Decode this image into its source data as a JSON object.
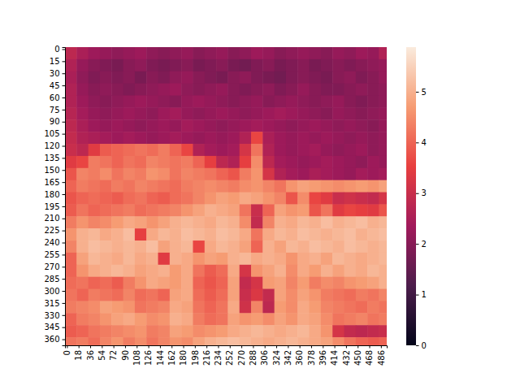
{
  "chart_data": {
    "type": "heatmap",
    "xlim": [
      -3,
      495
    ],
    "ylim": [
      -2.5,
      367.5
    ],
    "xticks": [
      0,
      18,
      36,
      54,
      72,
      90,
      108,
      126,
      144,
      162,
      180,
      198,
      216,
      234,
      252,
      270,
      288,
      306,
      324,
      342,
      360,
      378,
      396,
      414,
      432,
      450,
      468,
      486
    ],
    "yticks": [
      0,
      15,
      30,
      45,
      60,
      75,
      90,
      105,
      120,
      135,
      150,
      165,
      180,
      195,
      210,
      225,
      240,
      255,
      270,
      285,
      300,
      315,
      330,
      345,
      360
    ],
    "x_edges": [
      -3,
      15,
      33,
      51,
      69,
      87,
      105,
      123,
      141,
      159,
      177,
      195,
      213,
      231,
      249,
      267,
      285,
      303,
      321,
      339,
      357,
      375,
      393,
      411,
      429,
      447,
      465,
      483,
      501
    ],
    "y_edges": [
      -2.5,
      12.5,
      27.5,
      42.5,
      57.5,
      72.5,
      87.5,
      102.5,
      117.5,
      132.5,
      147.5,
      162.5,
      177.5,
      192.5,
      207.5,
      222.5,
      237.5,
      252.5,
      267.5,
      282.5,
      297.5,
      312.5,
      327.5,
      342.5,
      357.5,
      372.5
    ],
    "cells": [
      [
        2.8,
        2.5,
        2.3,
        2.2,
        2.1,
        2.2,
        2.3,
        2.1,
        2.0,
        2.1,
        2.2,
        2.0,
        2.1,
        2.2,
        2.0,
        2.1,
        2.3,
        2.2,
        2.0,
        2.1,
        2.2,
        2.1,
        2.0,
        2.2,
        2.1,
        2.3,
        2.2,
        2.6
      ],
      [
        2.6,
        2.2,
        2.0,
        1.9,
        1.8,
        2.0,
        2.1,
        1.9,
        1.8,
        1.9,
        2.0,
        1.8,
        1.9,
        2.0,
        1.8,
        1.7,
        1.9,
        2.0,
        1.8,
        1.9,
        2.0,
        1.8,
        1.9,
        2.0,
        1.9,
        2.0,
        2.1,
        2.2
      ],
      [
        2.5,
        2.1,
        1.9,
        2.0,
        1.9,
        2.0,
        1.8,
        2.0,
        1.9,
        2.1,
        2.2,
        2.0,
        1.9,
        1.8,
        2.0,
        2.1,
        1.9,
        1.8,
        1.7,
        1.9,
        2.0,
        1.9,
        1.8,
        2.0,
        2.1,
        1.9,
        2.0,
        2.2
      ],
      [
        2.6,
        2.2,
        2.0,
        2.1,
        2.0,
        1.9,
        2.0,
        2.1,
        2.2,
        2.3,
        2.1,
        2.0,
        2.1,
        2.2,
        2.0,
        1.9,
        2.0,
        2.1,
        1.9,
        2.0,
        2.2,
        2.0,
        1.9,
        1.9,
        2.0,
        2.1,
        2.0,
        2.1
      ],
      [
        2.6,
        2.3,
        2.1,
        2.0,
        2.1,
        2.2,
        2.3,
        2.2,
        2.1,
        2.0,
        2.2,
        2.3,
        2.2,
        2.1,
        2.0,
        2.1,
        2.2,
        2.0,
        2.1,
        2.2,
        2.1,
        2.0,
        2.1,
        2.2,
        2.0,
        1.9,
        2.0,
        2.1
      ],
      [
        2.7,
        2.4,
        2.2,
        2.1,
        2.2,
        2.3,
        2.2,
        2.1,
        2.3,
        2.4,
        2.2,
        2.1,
        2.2,
        2.3,
        2.2,
        2.1,
        2.2,
        2.3,
        2.4,
        2.3,
        2.2,
        2.1,
        2.0,
        2.2,
        2.1,
        2.0,
        2.1,
        2.2
      ],
      [
        2.8,
        2.5,
        2.3,
        2.2,
        2.3,
        2.2,
        2.1,
        2.2,
        2.3,
        2.2,
        2.4,
        2.3,
        2.2,
        2.1,
        2.2,
        2.3,
        2.4,
        2.3,
        2.2,
        2.1,
        2.2,
        2.3,
        2.2,
        2.1,
        2.2,
        2.1,
        2.0,
        2.2
      ],
      [
        2.9,
        2.6,
        2.5,
        2.4,
        2.3,
        2.4,
        2.3,
        2.2,
        2.3,
        2.4,
        2.3,
        2.2,
        2.3,
        2.2,
        2.3,
        2.6,
        3.6,
        2.5,
        2.3,
        2.2,
        2.3,
        2.2,
        2.3,
        2.2,
        2.1,
        2.2,
        2.1,
        2.2
      ],
      [
        3.0,
        2.8,
        3.4,
        3.9,
        4.0,
        4.1,
        4.2,
        4.1,
        4.3,
        4.0,
        3.6,
        2.6,
        2.4,
        2.3,
        2.4,
        3.2,
        4.2,
        2.6,
        2.3,
        2.2,
        2.3,
        2.4,
        2.2,
        2.1,
        2.2,
        2.3,
        2.1,
        2.2
      ],
      [
        3.4,
        3.6,
        4.3,
        4.2,
        4.0,
        4.2,
        4.1,
        4.4,
        4.3,
        4.2,
        4.3,
        4.0,
        3.5,
        2.8,
        2.6,
        3.5,
        4.5,
        2.8,
        2.4,
        2.3,
        2.2,
        2.3,
        2.4,
        2.3,
        2.2,
        2.1,
        2.3,
        2.2
      ],
      [
        3.8,
        4.4,
        4.3,
        4.5,
        4.2,
        4.4,
        4.3,
        4.6,
        4.5,
        4.2,
        4.4,
        4.3,
        4.2,
        4.0,
        3.8,
        4.3,
        4.6,
        3.2,
        2.6,
        2.4,
        2.3,
        2.5,
        2.4,
        2.3,
        2.2,
        2.4,
        2.3,
        2.4
      ],
      [
        4.0,
        4.3,
        4.2,
        4.1,
        4.3,
        4.2,
        4.4,
        4.3,
        4.2,
        4.1,
        4.3,
        4.4,
        4.5,
        4.4,
        4.3,
        4.5,
        4.6,
        4.4,
        4.2,
        4.6,
        4.8,
        4.7,
        4.6,
        4.5,
        4.6,
        4.7,
        4.6,
        4.8
      ],
      [
        3.8,
        4.0,
        4.1,
        4.0,
        3.9,
        4.1,
        4.2,
        4.0,
        3.9,
        4.1,
        4.2,
        4.4,
        4.6,
        4.8,
        4.7,
        4.9,
        4.8,
        4.6,
        4.4,
        3.8,
        4.5,
        3.6,
        3.4,
        3.0,
        3.1,
        3.0,
        2.9,
        3.2
      ],
      [
        3.9,
        4.2,
        4.0,
        4.1,
        4.2,
        4.3,
        4.1,
        4.2,
        4.3,
        4.4,
        4.6,
        4.8,
        5.0,
        4.9,
        4.8,
        4.2,
        3.0,
        4.0,
        4.8,
        4.6,
        4.7,
        3.8,
        4.2,
        3.4,
        3.6,
        3.5,
        3.4,
        3.8
      ],
      [
        4.3,
        4.6,
        4.4,
        4.5,
        4.7,
        4.9,
        4.8,
        4.6,
        4.8,
        5.0,
        5.1,
        5.0,
        4.9,
        5.1,
        5.0,
        4.5,
        2.9,
        4.4,
        5.0,
        4.9,
        5.1,
        5.0,
        5.2,
        5.0,
        5.1,
        5.2,
        5.0,
        5.1
      ],
      [
        4.6,
        5.0,
        5.1,
        4.9,
        5.0,
        5.2,
        3.5,
        4.9,
        5.1,
        5.0,
        5.2,
        5.1,
        5.0,
        5.2,
        5.1,
        4.9,
        4.2,
        4.9,
        5.1,
        5.0,
        5.2,
        5.1,
        5.0,
        5.1,
        5.2,
        5.0,
        5.1,
        5.2
      ],
      [
        4.4,
        5.0,
        5.2,
        5.1,
        5.0,
        5.1,
        5.0,
        5.2,
        4.8,
        5.0,
        5.1,
        3.6,
        4.9,
        5.1,
        5.0,
        4.8,
        4.0,
        5.0,
        4.8,
        5.1,
        5.0,
        5.2,
        5.1,
        5.0,
        5.2,
        5.1,
        5.0,
        5.1
      ],
      [
        4.0,
        4.8,
        5.1,
        5.0,
        4.9,
        5.1,
        4.9,
        5.0,
        3.4,
        5.0,
        4.9,
        4.6,
        4.8,
        4.7,
        5.0,
        5.1,
        4.9,
        5.0,
        4.9,
        4.6,
        4.9,
        5.0,
        4.8,
        5.1,
        5.0,
        4.9,
        5.0,
        5.1
      ],
      [
        4.0,
        4.6,
        4.9,
        5.0,
        5.1,
        5.0,
        4.8,
        4.9,
        5.0,
        4.7,
        4.9,
        4.2,
        3.9,
        4.1,
        4.9,
        3.2,
        4.6,
        4.8,
        5.0,
        4.5,
        4.9,
        4.7,
        5.0,
        4.8,
        5.0,
        4.9,
        5.1,
        5.0
      ],
      [
        4.1,
        4.2,
        4.0,
        4.1,
        3.9,
        4.3,
        4.6,
        4.9,
        4.8,
        4.7,
        4.9,
        4.0,
        3.8,
        4.0,
        4.8,
        2.9,
        3.2,
        4.7,
        4.8,
        4.4,
        4.7,
        4.3,
        4.5,
        4.4,
        4.6,
        4.7,
        4.8,
        5.0
      ],
      [
        4.2,
        4.0,
        4.3,
        4.2,
        4.1,
        4.4,
        4.1,
        4.2,
        4.0,
        4.8,
        4.9,
        4.1,
        3.9,
        4.1,
        4.8,
        3.0,
        3.3,
        2.9,
        4.8,
        4.5,
        4.8,
        4.6,
        4.3,
        4.2,
        4.1,
        4.3,
        4.2,
        4.4
      ],
      [
        4.3,
        4.4,
        4.5,
        4.8,
        4.7,
        4.6,
        4.2,
        4.3,
        4.4,
        4.9,
        4.8,
        4.2,
        4.0,
        4.2,
        4.9,
        3.1,
        4.4,
        2.8,
        4.7,
        4.5,
        4.9,
        4.7,
        4.4,
        4.3,
        4.2,
        4.1,
        4.3,
        4.2
      ],
      [
        4.0,
        4.3,
        4.4,
        4.6,
        4.8,
        4.9,
        4.7,
        4.5,
        4.6,
        5.0,
        4.9,
        4.3,
        4.1,
        4.2,
        4.8,
        4.6,
        4.7,
        4.5,
        4.8,
        4.6,
        4.9,
        4.8,
        4.5,
        4.2,
        4.3,
        4.4,
        4.2,
        4.3
      ],
      [
        3.9,
        4.0,
        4.2,
        4.3,
        4.4,
        4.5,
        4.6,
        4.3,
        4.4,
        4.8,
        4.7,
        4.5,
        4.6,
        4.7,
        4.9,
        5.0,
        5.1,
        5.0,
        4.9,
        5.0,
        5.1,
        4.9,
        4.6,
        3.2,
        2.9,
        2.8,
        2.9,
        3.0
      ],
      [
        4.2,
        4.3,
        4.1,
        4.4,
        4.6,
        4.3,
        4.5,
        4.2,
        4.4,
        4.6,
        4.5,
        4.8,
        5.0,
        5.1,
        5.2,
        5.1,
        5.0,
        4.9,
        5.0,
        5.1,
        5.0,
        4.9,
        4.8,
        4.5,
        4.2,
        4.0,
        3.9,
        4.0
      ]
    ],
    "colorbar": {
      "range": [
        0,
        5.88
      ],
      "ticks": [
        0,
        1,
        2,
        3,
        4,
        5
      ]
    }
  }
}
